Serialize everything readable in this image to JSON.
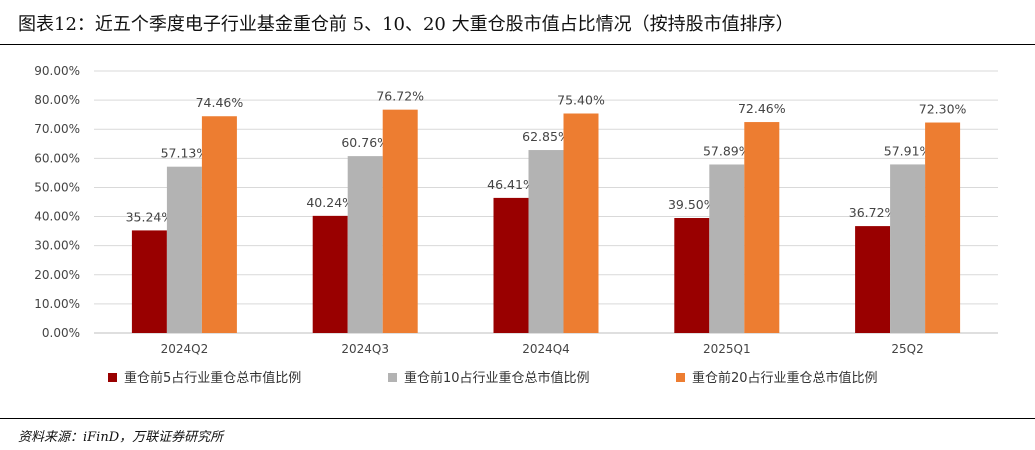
{
  "header": {
    "title": "图表12：近五个季度电子行业基金重仓前 5、10、20 大重仓股市值占比情况（按持股市值排序）"
  },
  "footer": {
    "source": "资料来源：iFinD，万联证券研究所"
  },
  "chart_data": {
    "type": "bar",
    "title": "",
    "xlabel": "",
    "ylabel": "",
    "categories": [
      "2024Q2",
      "2024Q3",
      "2024Q4",
      "2025Q1",
      "25Q2"
    ],
    "y_tick_labels": [
      "0.00%",
      "10.00%",
      "20.00%",
      "30.00%",
      "40.00%",
      "50.00%",
      "60.00%",
      "70.00%",
      "80.00%",
      "90.00%"
    ],
    "ylim": [
      0,
      90
    ],
    "grid": true,
    "legend_position": "bottom",
    "series": [
      {
        "name": "重仓前5占行业重仓总市值比例",
        "color": "#990000",
        "values": [
          35.24,
          40.24,
          46.41,
          39.5,
          36.72
        ],
        "labels": [
          "35.24%",
          "40.24%",
          "46.41%",
          "39.50%",
          "36.72%"
        ]
      },
      {
        "name": "重仓前10占行业重仓总市值比例",
        "color": "#b3b3b3",
        "values": [
          57.13,
          60.76,
          62.85,
          57.89,
          57.91
        ],
        "labels": [
          "57.13%",
          "60.76%",
          "62.85%",
          "57.89%",
          "57.91%"
        ]
      },
      {
        "name": "重仓前20占行业重仓总市值比例",
        "color": "#ed7d31",
        "values": [
          74.46,
          76.72,
          75.4,
          72.46,
          72.3
        ],
        "labels": [
          "74.46%",
          "76.72%",
          "75.40%",
          "72.46%",
          "72.30%"
        ]
      }
    ]
  }
}
